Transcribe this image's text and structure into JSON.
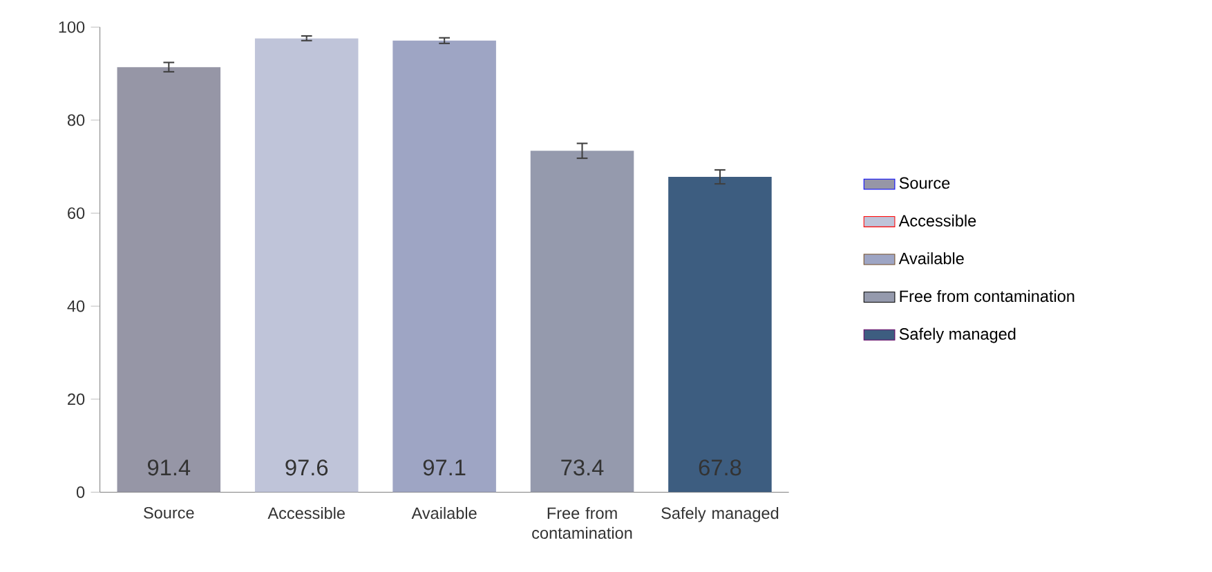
{
  "chart_data": {
    "type": "bar",
    "categories": [
      "Source",
      "Accessible",
      "Available",
      "Free from contamination",
      "Safely managed"
    ],
    "series": [
      {
        "name": "Source",
        "color": "#9696a6",
        "values": [
          91.4,
          null,
          null,
          null,
          null
        ],
        "errors": [
          1.0,
          null,
          null,
          null,
          null
        ]
      },
      {
        "name": "Accessible",
        "color": "#bfc4d9",
        "values": [
          null,
          97.6,
          null,
          null,
          null
        ],
        "errors": [
          null,
          0.5,
          null,
          null,
          null
        ]
      },
      {
        "name": "Available",
        "color": "#9ea5c4",
        "values": [
          null,
          null,
          97.1,
          null,
          null
        ],
        "errors": [
          null,
          null,
          0.6,
          null,
          null
        ]
      },
      {
        "name": "Free from contamination",
        "color": "#959aad",
        "values": [
          null,
          null,
          null,
          73.4,
          null
        ],
        "errors": [
          null,
          null,
          null,
          1.6,
          null
        ]
      },
      {
        "name": "Safely managed",
        "color": "#3d5d80",
        "values": [
          null,
          null,
          null,
          null,
          67.8
        ],
        "errors": [
          null,
          null,
          null,
          null,
          1.5
        ]
      }
    ],
    "ylim": [
      0,
      100
    ],
    "yticks": [
      0,
      20,
      40,
      60,
      80,
      100
    ],
    "data_labels": true,
    "legend": "right",
    "grid": false
  }
}
